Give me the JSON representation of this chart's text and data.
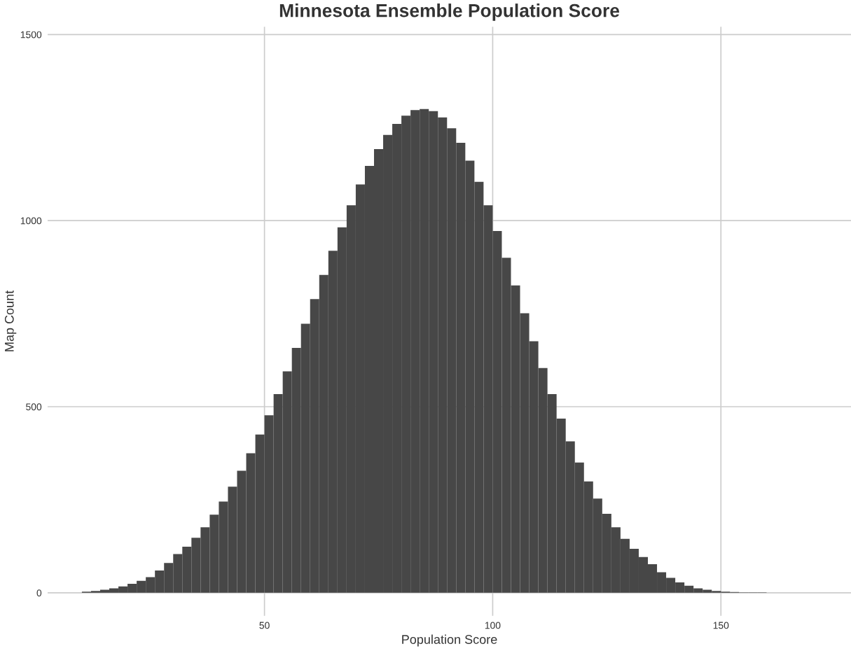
{
  "chart_data": {
    "type": "histogram",
    "title": "Minnesota Ensemble Population Score",
    "xlabel": "Population Score",
    "ylabel": "Map Count",
    "bins": [
      10,
      12,
      14,
      16,
      18,
      20,
      22,
      24,
      26,
      28,
      30,
      32,
      34,
      36,
      38,
      40,
      42,
      44,
      46,
      48,
      50,
      52,
      54,
      56,
      58,
      60,
      62,
      64,
      66,
      68,
      70,
      72,
      74,
      76,
      78,
      80,
      82,
      84,
      86,
      88,
      90,
      92,
      94,
      96,
      98,
      100,
      102,
      104,
      106,
      108,
      110,
      112,
      114,
      116,
      118,
      120,
      122,
      124,
      126,
      128,
      130,
      132,
      134,
      136,
      138,
      140,
      142,
      144,
      146,
      148,
      150,
      152,
      154,
      156,
      158,
      160
    ],
    "values": [
      3,
      5,
      8,
      12,
      17,
      24,
      32,
      42,
      60,
      80,
      104,
      124,
      148,
      176,
      210,
      245,
      285,
      328,
      375,
      425,
      477,
      534,
      595,
      658,
      723,
      789,
      854,
      919,
      982,
      1041,
      1097,
      1147,
      1192,
      1230,
      1260,
      1282,
      1297,
      1300,
      1294,
      1277,
      1248,
      1209,
      1161,
      1104,
      1041,
      972,
      900,
      826,
      751,
      676,
      604,
      534,
      468,
      407,
      350,
      299,
      253,
      212,
      176,
      145,
      118,
      96,
      77,
      55,
      40,
      28,
      19,
      12,
      8,
      5,
      3,
      2,
      1,
      1,
      1
    ],
    "color": "#474747",
    "xlim": [
      2.5,
      178.5
    ],
    "ylim": [
      -62,
      1521
    ],
    "xticks": [
      50,
      100,
      150
    ],
    "yticks": [
      0,
      500,
      1000,
      1500
    ],
    "grid": true
  }
}
